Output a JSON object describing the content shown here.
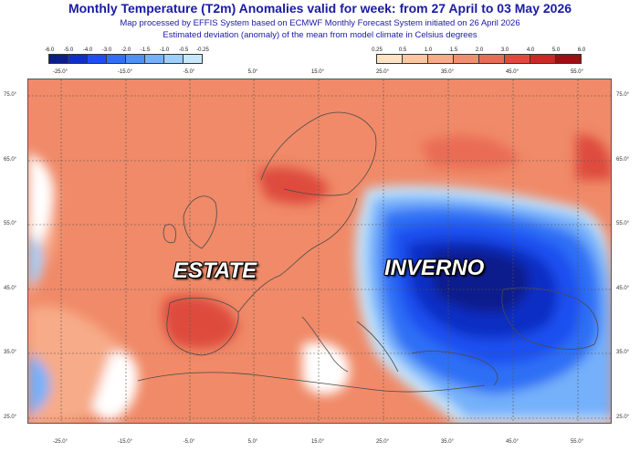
{
  "header": {
    "title": "Monthly Temperature (T2m) Anomalies valid for week: from 27 April to 03 May 2026",
    "subtitle1": "Map processed by EFFIS System based on ECMWF Monthly Forecast System initiated on 26 April 2026",
    "subtitle2": "Estimated deviation (anomaly) of the mean from model climate in Celsius degrees"
  },
  "colorbar_cold": {
    "labels": [
      "-6.0",
      "-5.0",
      "-4.0",
      "-3.0",
      "-2.0",
      "-1.5",
      "-1.0",
      "-0.5",
      "-0.25"
    ],
    "colors": [
      "#0a1e8c",
      "#0f2fc4",
      "#1d4ff0",
      "#2f70f5",
      "#4f8ff8",
      "#75b0fa",
      "#9ccffb",
      "#c6e6fb"
    ]
  },
  "colorbar_warm": {
    "labels": [
      "0.25",
      "0.5",
      "1.0",
      "1.5",
      "2.0",
      "3.0",
      "4.0",
      "5.0",
      "6.0"
    ],
    "colors": [
      "#fde3c4",
      "#fbc7a3",
      "#f7ab88",
      "#f28e70",
      "#ea6c55",
      "#de4b3c",
      "#c72a25",
      "#9c0f12"
    ]
  },
  "map": {
    "lon_labels": [
      "-25.0°",
      "-15.0°",
      "-5.0°",
      "5.0°",
      "15.0°",
      "25.0°",
      "35.0°",
      "45.0°",
      "55.0°"
    ],
    "lat_labels": [
      "75.0°",
      "65.0°",
      "55.0°",
      "45.0°",
      "35.0°",
      "25.0°"
    ],
    "overlay_left": "ESTATE",
    "overlay_right": "INVERNO"
  }
}
